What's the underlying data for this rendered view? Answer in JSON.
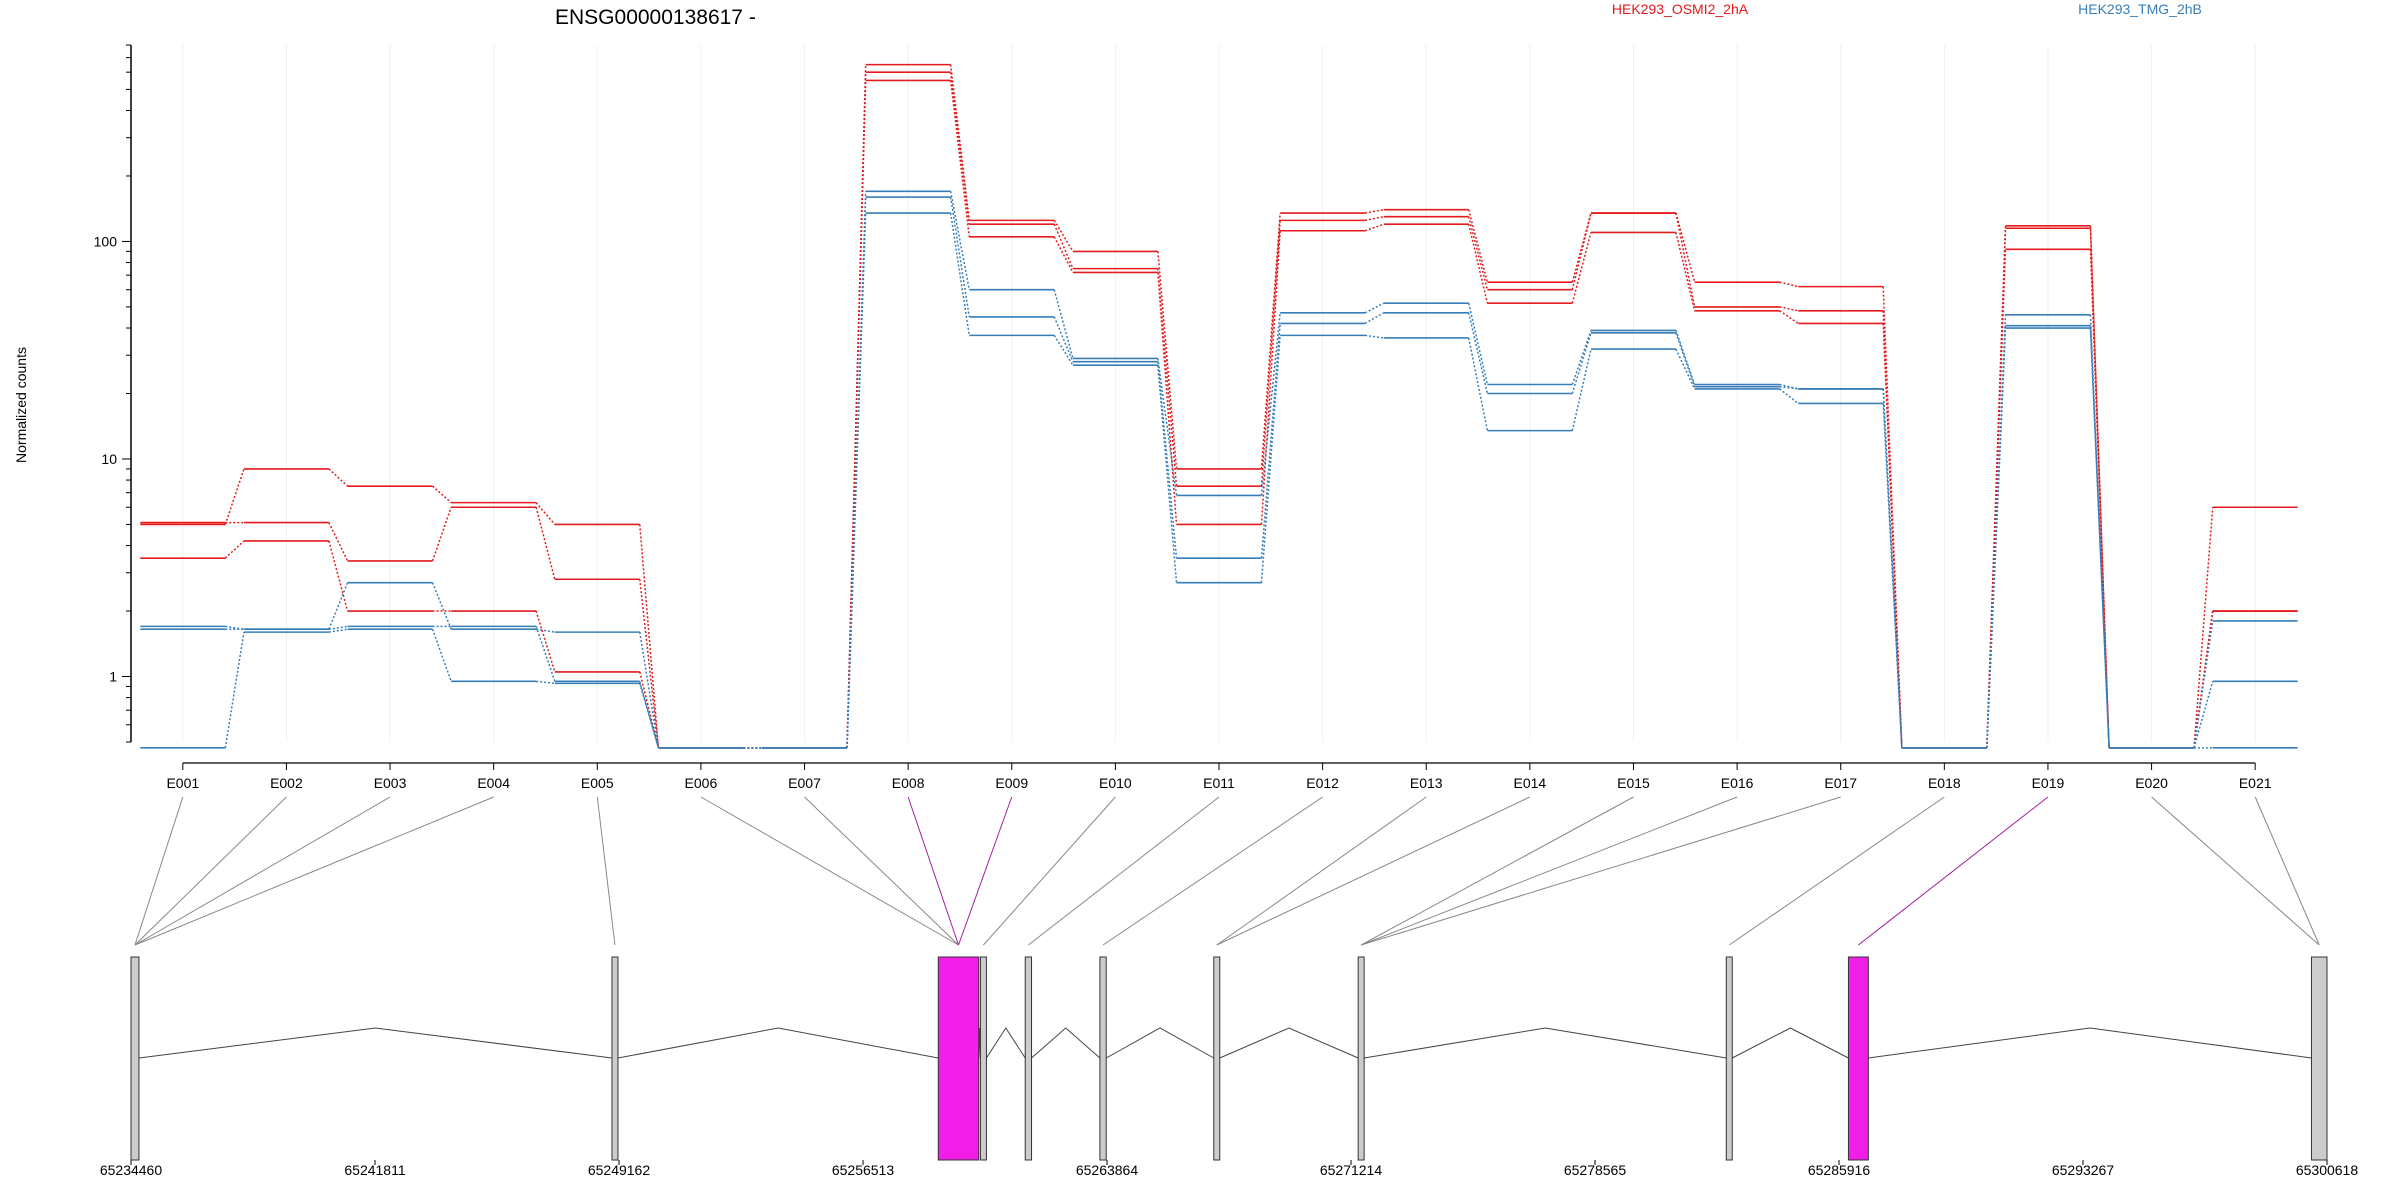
{
  "chart_data": {
    "type": "line",
    "title": "ENSG00000138617 -",
    "ylabel": "Normalized counts",
    "xlabel": "",
    "y_scale": "log",
    "y_ticks": [
      1,
      10,
      100
    ],
    "ylim": [
      0.5,
      800
    ],
    "grid": "vertical lines at each exon",
    "legend_position": "top-right",
    "colors": {
      "OSMI2": "#e41a1c",
      "TMG": "#377eb8",
      "highlight": "#f01ee6",
      "exon_fill": "#cccccc"
    },
    "categories": [
      "E001",
      "E002",
      "E003",
      "E004",
      "E005",
      "E006",
      "E007",
      "E008",
      "E009",
      "E010",
      "E011",
      "E012",
      "E013",
      "E014",
      "E015",
      "E016",
      "E017",
      "E018",
      "E019",
      "E020",
      "E021"
    ],
    "series": [
      {
        "name": "HEK293_OSMI2_2hA",
        "color": "#e41a1c",
        "values": [
          5.0,
          9.0,
          7.5,
          6.3,
          5.0,
          0.47,
          0.47,
          650,
          125,
          90,
          9.0,
          135,
          140,
          65,
          135,
          65,
          62,
          0.47,
          118,
          0.47,
          6.0
        ]
      },
      {
        "name": "",
        "color": "#e41a1c",
        "values": [
          5.1,
          5.1,
          3.4,
          6.0,
          2.8,
          0.47,
          0.47,
          600,
          120,
          75,
          7.5,
          125,
          130,
          60,
          135,
          50,
          48,
          0.47,
          115,
          0.47,
          2.0
        ]
      },
      {
        "name": "",
        "color": "#e41a1c",
        "values": [
          3.5,
          4.2,
          2.0,
          2.0,
          1.05,
          0.47,
          0.47,
          550,
          105,
          72,
          5.0,
          112,
          120,
          52,
          110,
          48,
          42,
          0.47,
          92,
          0.47,
          2.0
        ]
      },
      {
        "name": "HEK293_TMG_2hB",
        "color": "#377eb8",
        "values": [
          1.7,
          1.65,
          2.7,
          1.65,
          1.6,
          0.47,
          0.47,
          170,
          60,
          29,
          6.8,
          47,
          52,
          22,
          39,
          22,
          21,
          0.47,
          46,
          0.47,
          1.8
        ]
      },
      {
        "name": "",
        "color": "#377eb8",
        "values": [
          1.65,
          1.65,
          1.7,
          1.7,
          0.95,
          0.47,
          0.47,
          160,
          45,
          28,
          3.5,
          42,
          47,
          20,
          38,
          21.5,
          21,
          0.47,
          41,
          0.47,
          0.95
        ]
      },
      {
        "name": "",
        "color": "#377eb8",
        "values": [
          0.47,
          1.6,
          1.65,
          0.95,
          0.93,
          0.47,
          0.47,
          135,
          37,
          27,
          2.7,
          37,
          36,
          13.5,
          32,
          21,
          18,
          0.47,
          40,
          0.47,
          0.47
        ]
      }
    ],
    "gene_model": {
      "coordinate_ticks": [
        "65234460",
        "65241811",
        "65249162",
        "65256513",
        "65263864",
        "65271214",
        "65278565",
        "65285916",
        "65293267",
        "65300618"
      ],
      "genomic_range": [
        65234460,
        65300618
      ],
      "exons": [
        {
          "start": 65234460,
          "end": 65234700,
          "highlight": false
        },
        {
          "start": 65248950,
          "end": 65249100,
          "highlight": false
        },
        {
          "start": 65258780,
          "end": 65260000,
          "highlight": true
        },
        {
          "start": 65260050,
          "end": 65260230,
          "highlight": false
        },
        {
          "start": 65261400,
          "end": 65261590,
          "highlight": false
        },
        {
          "start": 65263650,
          "end": 65263840,
          "highlight": false
        },
        {
          "start": 65267080,
          "end": 65267260,
          "highlight": false
        },
        {
          "start": 65271430,
          "end": 65271560,
          "highlight": false
        },
        {
          "start": 65282520,
          "end": 65282640,
          "highlight": false
        },
        {
          "start": 65286200,
          "end": 65286800,
          "highlight": true
        },
        {
          "start": 65300150,
          "end": 65300618,
          "highlight": false
        }
      ],
      "exon_to_region": [
        0,
        0,
        0,
        0,
        1,
        2,
        2,
        2,
        2,
        3,
        4,
        5,
        6,
        6,
        7,
        7,
        7,
        8,
        9,
        10,
        10
      ],
      "highlighted_exon_bins": [
        "E008",
        "E009",
        "E019"
      ]
    }
  }
}
